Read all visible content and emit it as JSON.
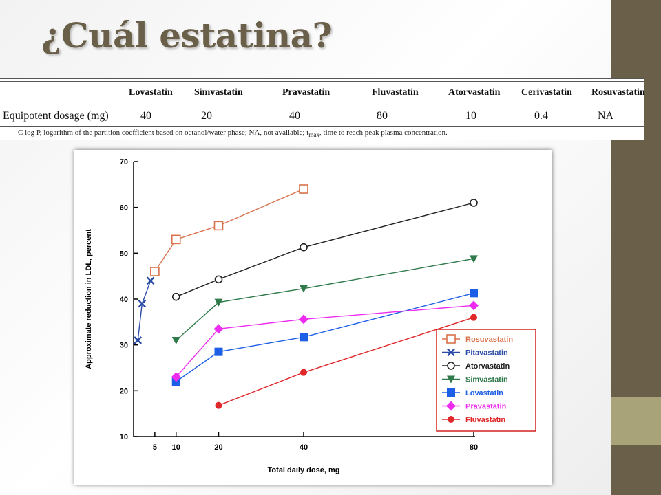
{
  "slide": {
    "title": "¿Cuál estatina?"
  },
  "table": {
    "headers": [
      "Lovastatin",
      "Simvastatin",
      "Pravastatin",
      "Fluvastatin",
      "Atorvastatin",
      "Cerivastatin",
      "Rosuvastatin"
    ],
    "row_label": "Equipotent dosage (mg)",
    "row_values": [
      "40",
      "20",
      "40",
      "80",
      "10",
      "0.4",
      "NA"
    ],
    "footnote": "C log P, logarithm of the partition coefficient based on octanol/water phase; NA, not available; t",
    "footnote_sub": "max",
    "footnote_end": ", time to reach peak plasma concentration."
  },
  "chart_data": {
    "type": "line",
    "ylabel": "Approximate reduction in LDL, percent",
    "xlabel": "Total daily dose, mg",
    "ylim": [
      10,
      70
    ],
    "xlim": [
      0,
      80
    ],
    "yticks": [
      10,
      20,
      30,
      40,
      50,
      60,
      70
    ],
    "xticks": [
      5,
      10,
      20,
      40,
      80
    ],
    "legend_position": "bottom-right",
    "series": [
      {
        "name": "Rosuvastatin",
        "color": "#d9714a",
        "marker": "square-open",
        "points": [
          [
            5,
            46
          ],
          [
            10,
            53
          ],
          [
            20,
            56
          ],
          [
            40,
            64
          ]
        ]
      },
      {
        "name": "Pitavastatin",
        "color": "#2a4aa8",
        "marker": "x",
        "points": [
          [
            1,
            31
          ],
          [
            2,
            39
          ],
          [
            4,
            44
          ]
        ]
      },
      {
        "name": "Atorvastatin",
        "color": "#222222",
        "marker": "circle-open",
        "points": [
          [
            10,
            40.5
          ],
          [
            20,
            44.3
          ],
          [
            40,
            51.3
          ],
          [
            80,
            61
          ]
        ]
      },
      {
        "name": "Simvastatin",
        "color": "#2e7a4a",
        "marker": "triangle-down",
        "points": [
          [
            10,
            31
          ],
          [
            20,
            39.3
          ],
          [
            40,
            42.3
          ],
          [
            80,
            48.8
          ]
        ]
      },
      {
        "name": "Lovastatin",
        "color": "#1d5ee6",
        "marker": "square",
        "points": [
          [
            10,
            22
          ],
          [
            20,
            28.5
          ],
          [
            40,
            31.7
          ],
          [
            80,
            41.3
          ]
        ]
      },
      {
        "name": "Pravastatin",
        "color": "#ee2cf0",
        "marker": "diamond",
        "points": [
          [
            10,
            23
          ],
          [
            20,
            33.5
          ],
          [
            40,
            35.6
          ],
          [
            80,
            38.6
          ]
        ]
      },
      {
        "name": "Fluvastatin",
        "color": "#e0282a",
        "marker": "circle",
        "points": [
          [
            20,
            16.8
          ],
          [
            40,
            24
          ],
          [
            80,
            36
          ]
        ]
      }
    ]
  }
}
